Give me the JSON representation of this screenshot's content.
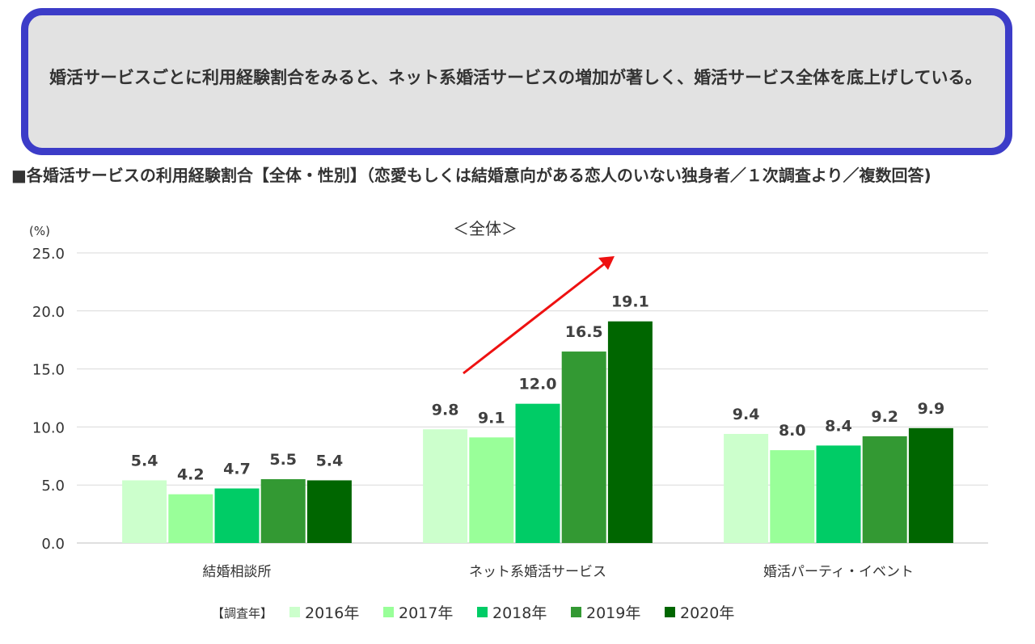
{
  "callout": {
    "text": "婚活サービスごとに利用経験割合をみると、ネット系婚活サービスの増加が著しく、婚活サービス全体を底上げしている。"
  },
  "section_title": "■各婚活サービスの利用経験割合【全体・性別】（恋愛もしくは結婚意向がある恋人のいない独身者／１次調査より／複数回答)",
  "colors": {
    "callout_border": "#3c3cc8",
    "callout_bg": "#e2e2e2",
    "arrow": "#ee1111",
    "grid": "#d9d9d9"
  },
  "chart_data": {
    "type": "bar",
    "title": "＜全体＞",
    "ylabel": "(%)",
    "xlabel": "",
    "ylim": [
      0,
      25
    ],
    "yticks": [
      "0.0",
      "5.0",
      "10.0",
      "15.0",
      "20.0",
      "25.0"
    ],
    "grid": true,
    "legend_title": "【調査年】",
    "legend_position": "bottom",
    "categories": [
      "結婚相談所",
      "ネット系婚活サービス",
      "婚活パーティ・イベント"
    ],
    "series": [
      {
        "name": "2016年",
        "color": "#ccffcc",
        "values": [
          5.4,
          9.8,
          9.4
        ]
      },
      {
        "name": "2017年",
        "color": "#99ff99",
        "values": [
          4.2,
          9.1,
          8.0
        ]
      },
      {
        "name": "2018年",
        "color": "#00cc66",
        "values": [
          4.7,
          12.0,
          8.4
        ]
      },
      {
        "name": "2019年",
        "color": "#339933",
        "values": [
          5.5,
          16.5,
          9.2
        ]
      },
      {
        "name": "2020年",
        "color": "#006600",
        "values": [
          5.4,
          19.1,
          9.9
        ]
      }
    ],
    "annotation": "increasing trend arrow over ネット系婚活サービス"
  }
}
